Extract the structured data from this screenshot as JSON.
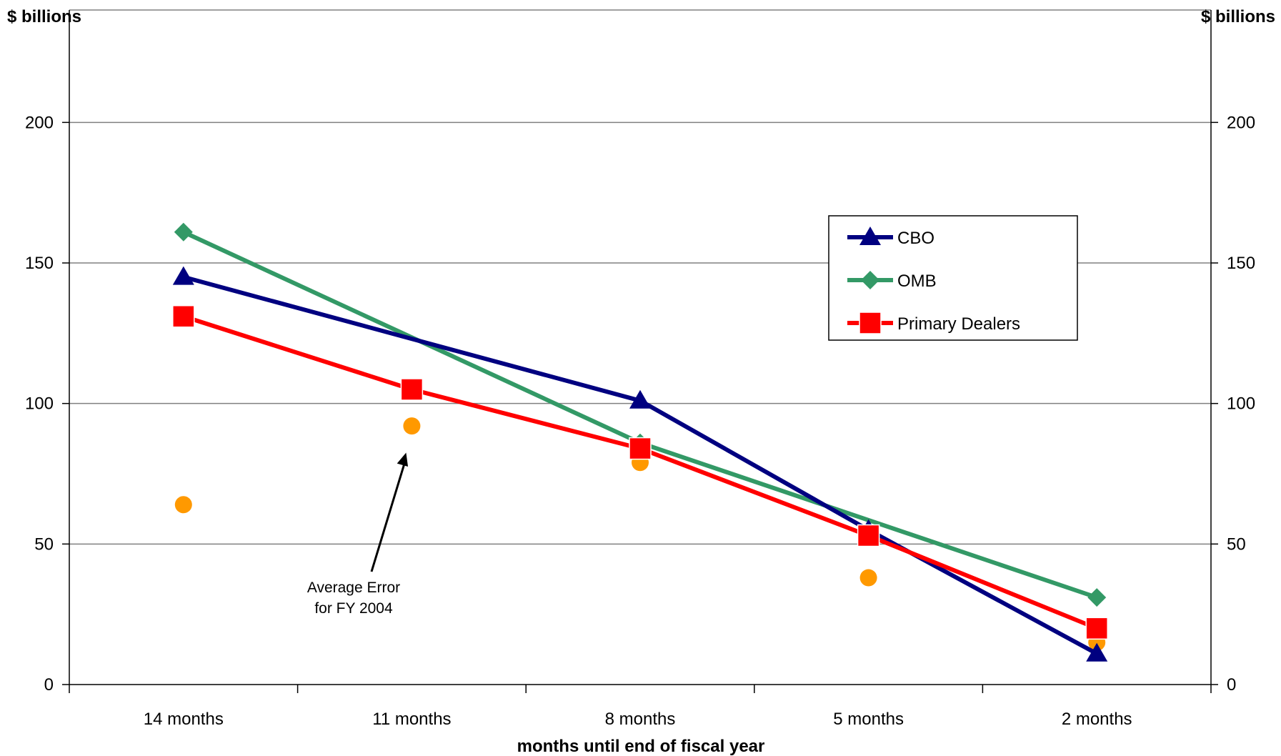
{
  "chart_data": {
    "type": "line",
    "title": "",
    "left_unit_label": "$ billions",
    "right_unit_label": "$ billions",
    "xlabel": "months until end of fiscal year",
    "ylabel": "",
    "categories": [
      "14 months",
      "11 months",
      "8 months",
      "5 months",
      "2 months"
    ],
    "ylim": [
      0,
      240
    ],
    "yticks": [
      0,
      50,
      100,
      150,
      200
    ],
    "grid": true,
    "legend_position": "right",
    "series": [
      {
        "name": "CBO",
        "values": [
          145,
          null,
          101,
          55,
          11
        ],
        "color": "#000080",
        "marker": "triangle"
      },
      {
        "name": "OMB",
        "values": [
          161,
          null,
          86,
          null,
          31
        ],
        "color": "#339966",
        "marker": "diamond"
      },
      {
        "name": "Primary Dealers",
        "values": [
          131,
          105,
          84,
          53,
          20
        ],
        "color": "#ff0000",
        "marker": "square"
      }
    ],
    "scatter_series": {
      "values": [
        64,
        92,
        79,
        38,
        15
      ],
      "color": "#ff9900",
      "marker": "circle"
    },
    "annotation": {
      "lines": [
        "Average Error",
        "for FY 2004"
      ],
      "arrow_target_category": "11 months",
      "arrow_target_value": 83
    }
  }
}
